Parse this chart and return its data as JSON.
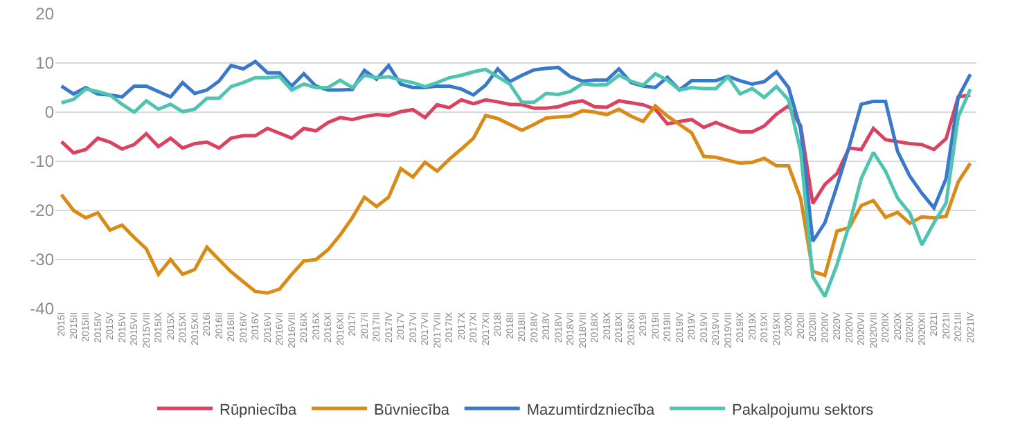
{
  "chart_data": {
    "type": "line",
    "categories": [
      "2015I",
      "2015II",
      "2015III",
      "2015IV",
      "2015V",
      "2015VI",
      "2015VII",
      "2015VIII",
      "2015IX",
      "2015X",
      "2015XI",
      "2015XII",
      "2016I",
      "2016II",
      "2016III",
      "2016IV",
      "2016V",
      "2016VI",
      "2016VII",
      "2016VIII",
      "2016IX",
      "2016X",
      "2016XI",
      "2016XII",
      "2017I",
      "2017II",
      "2017III",
      "2017IV",
      "2017V",
      "2017VI",
      "2017VII",
      "2017VIII",
      "2017IX",
      "2017X",
      "2017XI",
      "2017XII",
      "2018I",
      "2018II",
      "2018III",
      "2018IV",
      "2018V",
      "2018VI",
      "2018VII",
      "2018VIII",
      "2018IX",
      "2018X",
      "2018XI",
      "2018XII",
      "2019I",
      "2019II",
      "2019III",
      "2019IV",
      "2019V",
      "2019VI",
      "2019VII",
      "2019VIII",
      "2019IX",
      "2019X",
      "2019XI",
      "2019XII",
      "2020I",
      "2020II",
      "2020III",
      "2020IV",
      "2020V",
      "2020VI",
      "2020VII",
      "2020VIII",
      "2020IX",
      "2020X",
      "2020XI",
      "2020XII",
      "2021I",
      "2021II",
      "2021III",
      "2021IV"
    ],
    "series": [
      {
        "name": "Rūpniecība",
        "color": "#d9435f",
        "values": [
          -6,
          -8.3,
          -7.6,
          -5.3,
          -6.1,
          -7.5,
          -6.6,
          -4.4,
          -7,
          -5.3,
          -7.3,
          -6.4,
          -6.1,
          -7.3,
          -5.3,
          -4.8,
          -4.8,
          -3.3,
          -4.3,
          -5.3,
          -3.3,
          -3.8,
          -2.1,
          -1.1,
          -1.5,
          -0.9,
          -0.5,
          -0.7,
          0.1,
          0.5,
          -1.1,
          1.5,
          0.9,
          2.5,
          1.7,
          2.5,
          2.1,
          1.6,
          1.5,
          0.8,
          0.8,
          1.1,
          1.9,
          2.3,
          1.1,
          1,
          2.3,
          1.9,
          1.5,
          0.6,
          -2.4,
          -1.9,
          -1.5,
          -3.1,
          -2.1,
          -3.1,
          -4,
          -4,
          -2.8,
          -0.4,
          1.3,
          -2.8,
          -18.6,
          -14.7,
          -12.5,
          -7.3,
          -7.6,
          -3.3,
          -5.6,
          -6,
          -6.4,
          -6.6,
          -7.6,
          -5.4,
          3.1,
          3.5
        ]
      },
      {
        "name": "Būvniecība",
        "color": "#d98a17",
        "values": [
          -16.8,
          -20,
          -21.5,
          -20.5,
          -24,
          -23,
          -25.5,
          -27.8,
          -33,
          -30,
          -33,
          -32,
          -27.5,
          -30,
          -32.5,
          -34.5,
          -36.5,
          -36.8,
          -36,
          -33,
          -30.3,
          -30,
          -28,
          -25,
          -21.5,
          -17.3,
          -19.2,
          -17.3,
          -11.5,
          -13.2,
          -10.2,
          -12,
          -9.6,
          -7.5,
          -5.3,
          -0.7,
          -1.3,
          -2.5,
          -3.7,
          -2.5,
          -1.2,
          -1,
          -0.8,
          0.3,
          0,
          -0.5,
          0.6,
          -0.8,
          -1.9,
          1.3,
          -0.8,
          -2.5,
          -4.2,
          -9,
          -9.2,
          -9.8,
          -10.4,
          -10.2,
          -9.4,
          -10.9,
          -10.9,
          -17.6,
          -32.4,
          -33.2,
          -24.2,
          -23.5,
          -19,
          -18,
          -21.4,
          -20.4,
          -22.6,
          -21.3,
          -21.5,
          -21.2,
          -14.2,
          -10.4
        ]
      },
      {
        "name": "Mazumtirdzniecība",
        "color": "#3a78c9",
        "values": [
          5.3,
          3.7,
          5,
          3.7,
          3.5,
          3.1,
          5.3,
          5.3,
          4.2,
          3.1,
          6,
          3.8,
          4.5,
          6.3,
          9.5,
          8.8,
          10.3,
          8,
          8,
          5.3,
          7.8,
          5.3,
          4.5,
          4.5,
          4.6,
          8.5,
          6.7,
          9.5,
          5.7,
          5,
          5,
          5.3,
          5.3,
          4.7,
          3.5,
          5.5,
          8.8,
          6.2,
          7.5,
          8.6,
          8.9,
          9.1,
          7.2,
          6.3,
          6.5,
          6.5,
          8.8,
          6,
          5.3,
          5,
          7.1,
          4.5,
          6.4,
          6.4,
          6.4,
          7.3,
          6.4,
          5.7,
          6.2,
          8.2,
          5,
          -3.5,
          -26.3,
          -22.5,
          -15,
          -7,
          1.6,
          2.2,
          2.2,
          -8,
          -13,
          -16.5,
          -19.5,
          -13.5,
          3,
          7.7
        ]
      },
      {
        "name": "Pakalpojumu sektors",
        "color": "#4fc4b0",
        "values": [
          1.9,
          2.6,
          4.7,
          4.2,
          3.5,
          1.6,
          0,
          2.3,
          0.6,
          1.6,
          0.1,
          0.6,
          2.8,
          2.8,
          5.2,
          6,
          7,
          7,
          7.2,
          4.5,
          5.7,
          5,
          5,
          6.5,
          5,
          7.5,
          7,
          7.2,
          6.5,
          6,
          5.2,
          6,
          7,
          7.5,
          8.2,
          8.7,
          7.2,
          5.7,
          2,
          2,
          3.8,
          3.6,
          4.2,
          5.8,
          5.5,
          5.6,
          7.5,
          6.3,
          5.5,
          7.8,
          6.5,
          4.5,
          5,
          4.8,
          4.8,
          7.2,
          3.7,
          4.8,
          3,
          5.2,
          2.5,
          -8,
          -33.5,
          -37.5,
          -31,
          -23,
          -13.5,
          -8.2,
          -12,
          -17.5,
          -20.5,
          -27,
          -22.5,
          -18.5,
          -1,
          4.7
        ]
      }
    ],
    "ylim": [
      -40,
      20
    ],
    "yticks": [
      -40,
      -30,
      -20,
      -10,
      0,
      10,
      20
    ],
    "grid": "y",
    "legend": "bottom",
    "marker": "none",
    "line_style": "solid"
  }
}
